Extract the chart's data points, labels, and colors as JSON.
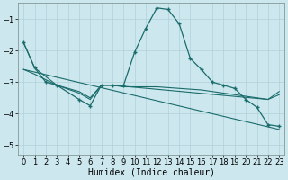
{
  "xlabel": "Humidex (Indice chaleur)",
  "bg_color": "#cce8ee",
  "grid_color": "#b0d0d8",
  "line_color": "#1a6b6b",
  "xlim": [
    -0.5,
    23.5
  ],
  "ylim": [
    -5.3,
    -0.5
  ],
  "yticks": [
    -5,
    -4,
    -3,
    -2,
    -1
  ],
  "xticks": [
    0,
    1,
    2,
    3,
    4,
    5,
    6,
    7,
    8,
    9,
    10,
    11,
    12,
    13,
    14,
    15,
    16,
    17,
    18,
    19,
    20,
    21,
    22,
    23
  ],
  "series1_x": [
    0,
    1,
    2,
    3,
    5,
    6,
    7,
    8,
    9,
    10,
    11,
    12,
    13,
    14,
    15,
    16,
    17,
    18,
    19,
    20,
    21,
    22,
    23
  ],
  "series1_y": [
    -1.75,
    -2.55,
    -3.0,
    -3.1,
    -3.55,
    -3.75,
    -3.1,
    -3.1,
    -3.1,
    -2.05,
    -1.3,
    -0.65,
    -0.7,
    -1.15,
    -2.25,
    -2.6,
    -3.0,
    -3.1,
    -3.2,
    -3.55,
    -3.8,
    -4.35,
    -4.4
  ],
  "series2_x": [
    0,
    1,
    3,
    5,
    6,
    7,
    8,
    22,
    23
  ],
  "series2_y": [
    -1.75,
    -2.55,
    -3.1,
    -3.35,
    -3.55,
    -3.1,
    -3.1,
    -3.55,
    -3.3
  ],
  "series3_x": [
    0,
    1,
    3,
    5,
    6,
    7,
    8,
    9,
    10,
    12,
    14,
    16,
    18,
    20,
    21,
    22,
    23
  ],
  "series3_y": [
    -2.6,
    -2.75,
    -3.1,
    -3.3,
    -3.5,
    -3.1,
    -3.1,
    -3.15,
    -3.15,
    -3.15,
    -3.2,
    -3.25,
    -3.35,
    -3.45,
    -3.5,
    -3.55,
    -3.4
  ],
  "series4_x": [
    0,
    23
  ],
  "series4_y": [
    -2.6,
    -4.5
  ],
  "fontsize_label": 7.0,
  "fontsize_tick": 6.0
}
